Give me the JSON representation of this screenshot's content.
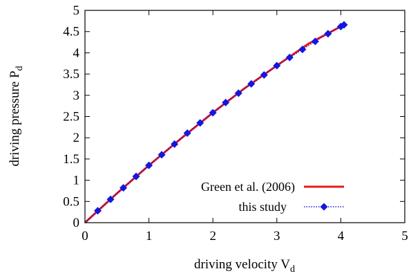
{
  "chart_data": {
    "type": "line",
    "xlabel": "driving velocity V",
    "xlabel_sub": "d",
    "ylabel": "driving pressure P",
    "ylabel_sub": "d",
    "xlim": [
      0,
      5
    ],
    "ylim": [
      0,
      5
    ],
    "xticks": [
      "0",
      "1",
      "2",
      "3",
      "4",
      "5"
    ],
    "yticks": [
      "0",
      "0.5",
      "1",
      "1.5",
      "2",
      "2.5",
      "3",
      "3.5",
      "4",
      "4.5",
      "5"
    ],
    "grid": false,
    "legend_position": "bottom-right",
    "series": [
      {
        "name": "Green et al. (2006)",
        "style": "solid line",
        "color": "#e41a1c",
        "x": [
          0,
          0.5,
          1.0,
          1.5,
          2.0,
          2.5,
          3.0,
          3.5,
          4.0,
          4.05
        ],
        "y": [
          0,
          0.69,
          1.35,
          1.98,
          2.59,
          3.17,
          3.7,
          4.22,
          4.62,
          4.66
        ]
      },
      {
        "name": "this study",
        "style": "dotted line with diamond markers",
        "color": "#1515e0",
        "x": [
          0.2,
          0.4,
          0.6,
          0.8,
          1.0,
          1.2,
          1.4,
          1.6,
          1.8,
          2.0,
          2.2,
          2.4,
          2.6,
          2.8,
          3.0,
          3.2,
          3.4,
          3.6,
          3.8,
          4.0,
          4.05
        ],
        "y": [
          0.28,
          0.55,
          0.82,
          1.09,
          1.35,
          1.6,
          1.85,
          2.11,
          2.35,
          2.59,
          2.83,
          3.05,
          3.27,
          3.48,
          3.7,
          3.89,
          4.08,
          4.27,
          4.45,
          4.62,
          4.66
        ]
      }
    ]
  }
}
